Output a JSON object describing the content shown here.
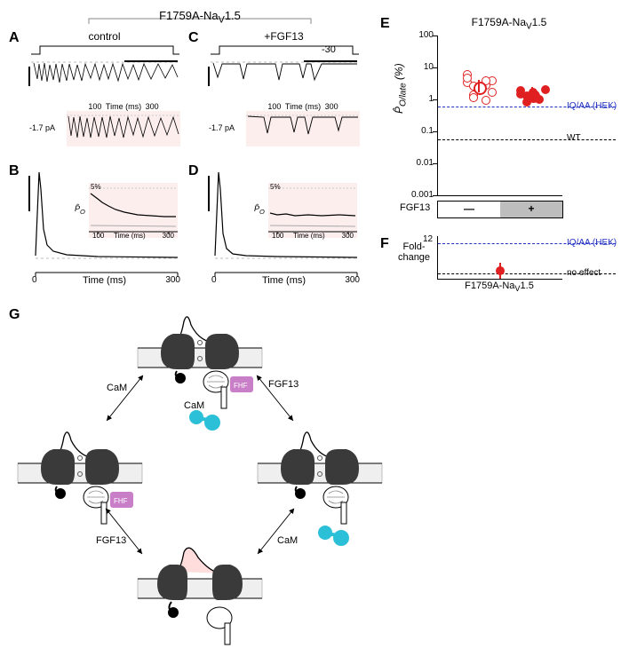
{
  "top_header": "F1759A-Na_V1.5",
  "panels": {
    "A": {
      "label": "A",
      "title": "control",
      "voltage": "-30",
      "inset_xlabel": "Time (ms)",
      "inset_xticks": [
        "100",
        "300"
      ],
      "inset_ylabel": "-1.7 pA"
    },
    "B": {
      "label": "B",
      "xaxis": "Time (ms)",
      "xticks": [
        "0",
        "300"
      ],
      "inset_ylabel": "P̂_O",
      "inset_ytick": "5%",
      "inset_xlabel": "Time (ms)",
      "inset_xticks": [
        "100",
        "300"
      ]
    },
    "C": {
      "label": "C",
      "title": "+FGF13",
      "inset_xlabel": "Time (ms)",
      "inset_xticks": [
        "100",
        "300"
      ],
      "inset_ylabel": "-1.7 pA"
    },
    "D": {
      "label": "D",
      "xaxis": "Time (ms)",
      "xticks": [
        "0",
        "300"
      ],
      "inset_ylabel": "P̂_O",
      "inset_ytick": "5%",
      "inset_xlabel": "Time (ms)",
      "inset_xticks": [
        "100",
        "300"
      ]
    },
    "E": {
      "label": "E",
      "title": "F1759A-Na_V1.5",
      "ylabel": "P̂_O/late (%)",
      "yticks": [
        "0.001",
        "0.01",
        "0.1",
        "1",
        "10",
        "100"
      ],
      "xlabel_left": "—",
      "xlabel_right": "+",
      "xrow_label": "FGF13",
      "dash_blue": {
        "label": "IQ/AA (HEK)",
        "color": "#2030c0"
      },
      "dash_black": {
        "label": "WT",
        "color": "#000000"
      },
      "minus_points": [
        3.5,
        2.8,
        2.0,
        1.0,
        4.2,
        6.5,
        1.5,
        2.3,
        3.0,
        1.8,
        5.0,
        1.2,
        2.6,
        4.0
      ],
      "plus_points": [
        2.0,
        1.4,
        1.8,
        1.1,
        2.2,
        1.6,
        0.9,
        1.3
      ],
      "mean_minus": 2.6,
      "mean_plus": 1.5
    },
    "F": {
      "label": "F",
      "ylabel": "Fold-\nchange",
      "ytick": "12",
      "xlabel": "F1759A-Na_V1.5",
      "dash_blue": {
        "label": "IQ/AA (HEK)",
        "color": "#2030c0"
      },
      "no_effect_label": "no effect",
      "point_value": 1.5
    },
    "G": {
      "label": "G",
      "cam_label": "CaM",
      "fgf_label": "FGF13",
      "fhf_box": "FHF",
      "cam_color": "#2cc0d8",
      "fhf_color": "#c87fc8"
    }
  },
  "colors": {
    "pink_bg": "#fdeeee",
    "red": "#e02020",
    "blue": "#2030c0",
    "gray": "#b0b0b0"
  }
}
